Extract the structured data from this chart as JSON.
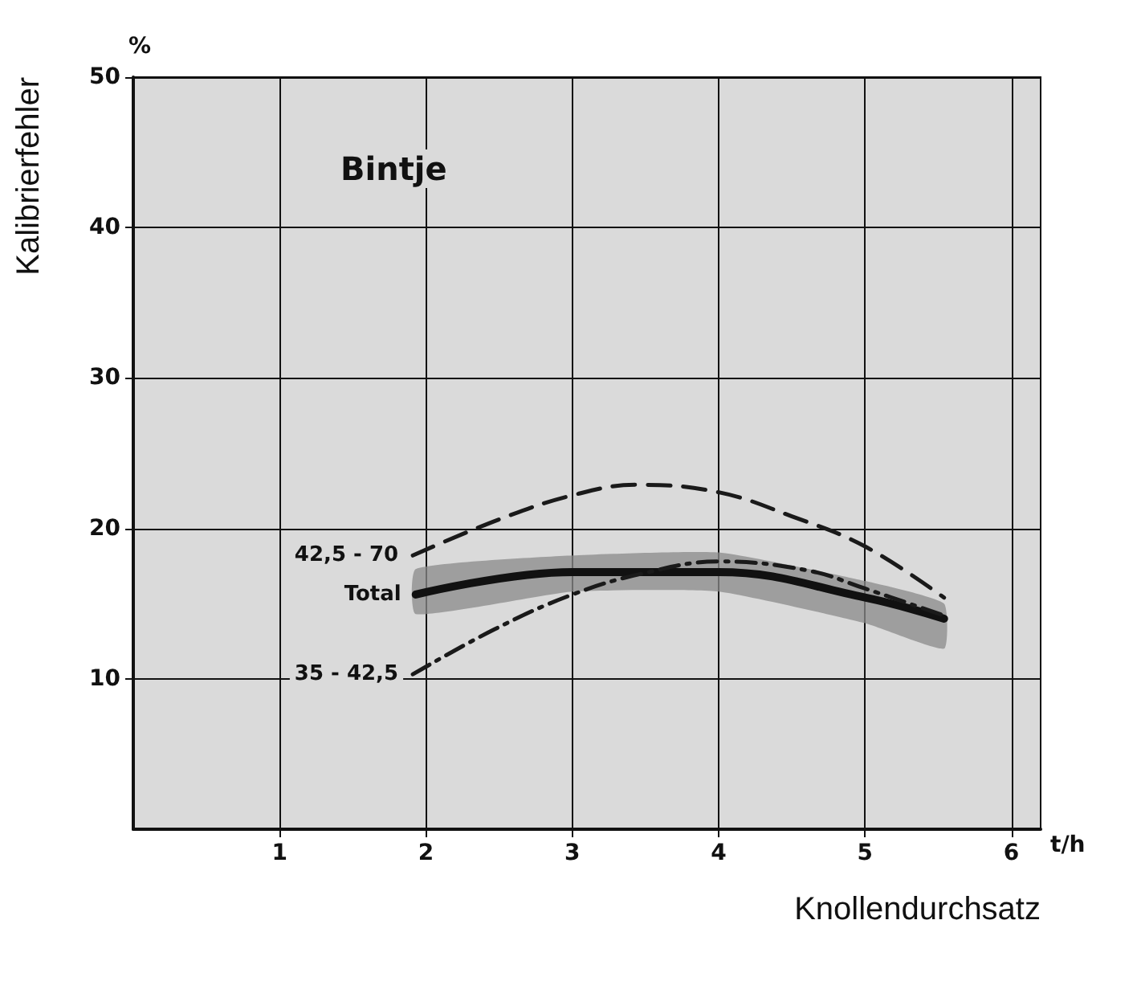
{
  "chart_data": {
    "type": "line",
    "xlabel": "Knollendurchsatz",
    "ylabel": "Kalibrierfehler",
    "annotations": [
      "Bintje",
      "%",
      "t/h"
    ],
    "xlim": [
      0,
      6.2
    ],
    "xticks": [
      1,
      2,
      3,
      4,
      5,
      6
    ],
    "ylim": [
      0,
      50
    ],
    "yticks": [
      10,
      20,
      30,
      40,
      50
    ],
    "grid": true,
    "marker": "none",
    "series": [
      {
        "name": "42,5 - 70",
        "color": "#1a1a1a",
        "line_style": "dashed",
        "x": [
          1.91,
          2.5,
          3,
          3.44,
          4,
          4.5,
          5,
          5.54
        ],
        "values": [
          18.2,
          20.6,
          22.2,
          22.9,
          22.4,
          20.8,
          18.8,
          15.4
        ]
      },
      {
        "name": "Total",
        "color": "#111111",
        "line_style": "solid",
        "x": [
          1.93,
          3,
          4,
          5,
          5.54
        ],
        "values": [
          15.6,
          17.1,
          17.1,
          15.4,
          14.0
        ],
        "lower": [
          14.3,
          15.8,
          15.8,
          13.7,
          12.0
        ],
        "upper": [
          17.3,
          18.2,
          18.4,
          16.5,
          15.0
        ]
      },
      {
        "name": "35 - 42,5",
        "color": "#1a1a1a",
        "line_style": "dashdot",
        "x": [
          1.91,
          2.47,
          3,
          3.48,
          4,
          4.61,
          5,
          5.54
        ],
        "values": [
          10.3,
          13.3,
          15.6,
          17.0,
          17.8,
          17.2,
          16.0,
          14.2
        ]
      }
    ]
  }
}
